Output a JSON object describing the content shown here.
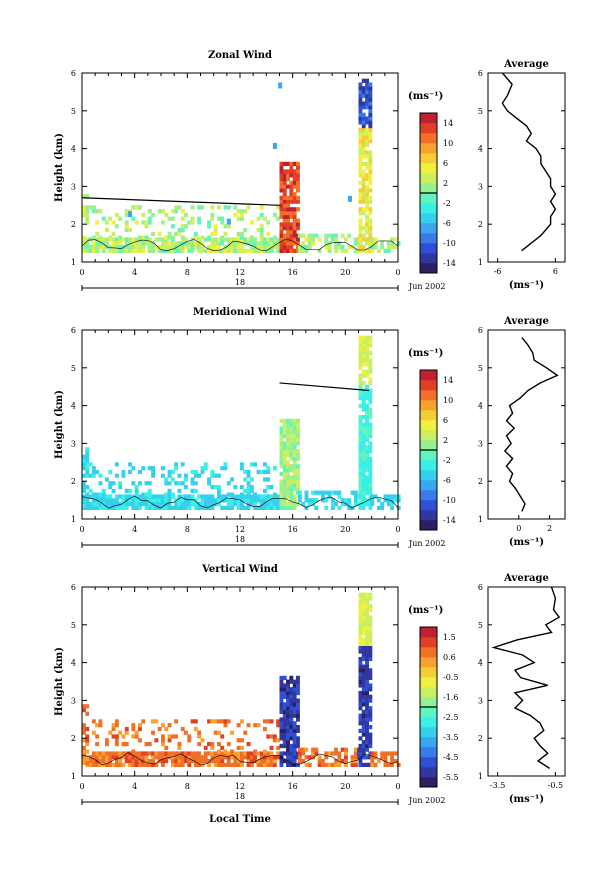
{
  "x_axis_label": "Local Time",
  "date_label": "Jun 2002",
  "day_label": "18",
  "x_ticks": [
    "0",
    "4",
    "8",
    "12",
    "16",
    "20",
    "0"
  ],
  "y_axis_label": "Height (km)",
  "unit_label": "(ms⁻¹)",
  "panels": [
    {
      "title": "Zonal Wind",
      "average_title": "Average",
      "y_ticks": [
        "1",
        "2",
        "3",
        "4",
        "5",
        "6"
      ],
      "colorbar_ticks": [
        "14",
        "10",
        "6",
        "2",
        "-2",
        "-6",
        "-10",
        "-14"
      ],
      "average_ticks": [
        "-6",
        "6"
      ],
      "scale": "zonal"
    },
    {
      "title": "Meridional Wind",
      "average_title": "Average",
      "y_ticks": [
        "1",
        "2",
        "3",
        "4",
        "5",
        "6"
      ],
      "colorbar_ticks": [
        "14",
        "10",
        "6",
        "2",
        "-2",
        "-6",
        "-10",
        "-14"
      ],
      "average_ticks": [
        "0",
        "2"
      ],
      "scale": "merid"
    },
    {
      "title": "Vertical Wind",
      "average_title": "Average",
      "y_ticks": [
        "1",
        "2",
        "3",
        "4",
        "5",
        "6"
      ],
      "colorbar_ticks": [
        "1.5",
        "0.6",
        "-0.5",
        "-1.6",
        "-2.5",
        "-3.5",
        "-4.5",
        "-5.5"
      ],
      "average_ticks": [
        "-3.5",
        "-0.5"
      ],
      "scale": "vert"
    }
  ],
  "chart_data": [
    {
      "type": "heatmap",
      "title": "Zonal Wind",
      "xlabel": "Local Time",
      "ylabel": "Height (km)",
      "x_range_hours": [
        0,
        24
      ],
      "ylim": [
        1,
        6
      ],
      "colorbar": {
        "label": "(ms⁻¹)",
        "range": [
          -16,
          16
        ],
        "ticks": [
          14,
          10,
          6,
          2,
          -2,
          -6,
          -10,
          -14
        ]
      },
      "boundary_layer_top": [
        {
          "x": 0,
          "y": 2.7
        },
        {
          "x": 15,
          "y": 2.5
        }
      ],
      "average_profile": {
        "title": "Average",
        "xlim": [
          -8,
          8
        ],
        "xticks": [
          -6,
          6
        ],
        "xlabel": "(ms⁻¹)",
        "points": [
          [
            -5,
            6.0
          ],
          [
            -3,
            5.7
          ],
          [
            -4,
            5.4
          ],
          [
            -5,
            5.2
          ],
          [
            -4,
            5.0
          ],
          [
            -2,
            4.8
          ],
          [
            0,
            4.6
          ],
          [
            1,
            4.4
          ],
          [
            0,
            4.2
          ],
          [
            2,
            4.0
          ],
          [
            3,
            3.8
          ],
          [
            3,
            3.6
          ],
          [
            4,
            3.4
          ],
          [
            5,
            3.2
          ],
          [
            5,
            3.0
          ],
          [
            6,
            2.8
          ],
          [
            5,
            2.6
          ],
          [
            6,
            2.4
          ],
          [
            5,
            2.2
          ],
          [
            5,
            2.0
          ],
          [
            3,
            1.7
          ],
          [
            1,
            1.5
          ],
          [
            -1,
            1.3
          ]
        ]
      }
    },
    {
      "type": "heatmap",
      "title": "Meridional Wind",
      "xlabel": "Local Time",
      "ylabel": "Height (km)",
      "x_range_hours": [
        0,
        24
      ],
      "ylim": [
        1,
        6
      ],
      "colorbar": {
        "label": "(ms⁻¹)",
        "range": [
          -16,
          16
        ],
        "ticks": [
          14,
          10,
          6,
          2,
          -2,
          -6,
          -10,
          -14
        ]
      },
      "boundary_layer_top": [
        {
          "x": 15,
          "y": 4.6
        },
        {
          "x": 21.8,
          "y": 4.4
        }
      ],
      "average_profile": {
        "title": "Average",
        "xlim": [
          -2,
          3
        ],
        "xticks": [
          0,
          2
        ],
        "xlabel": "(ms⁻¹)",
        "points": [
          [
            0.2,
            5.8
          ],
          [
            0.6,
            5.6
          ],
          [
            0.9,
            5.4
          ],
          [
            1.0,
            5.2
          ],
          [
            1.8,
            5.0
          ],
          [
            2.5,
            4.8
          ],
          [
            1.4,
            4.6
          ],
          [
            0.6,
            4.4
          ],
          [
            0.1,
            4.2
          ],
          [
            -0.6,
            4.0
          ],
          [
            -0.4,
            3.8
          ],
          [
            -0.8,
            3.6
          ],
          [
            -0.3,
            3.4
          ],
          [
            -0.8,
            3.2
          ],
          [
            -0.5,
            3.0
          ],
          [
            -0.9,
            2.8
          ],
          [
            -0.4,
            2.6
          ],
          [
            -0.8,
            2.4
          ],
          [
            -0.4,
            2.2
          ],
          [
            -0.6,
            2.0
          ],
          [
            -0.2,
            1.8
          ],
          [
            0.1,
            1.6
          ],
          [
            0.4,
            1.4
          ],
          [
            0.2,
            1.2
          ]
        ]
      }
    },
    {
      "type": "heatmap",
      "title": "Vertical Wind",
      "xlabel": "Local Time",
      "ylabel": "Height (km)",
      "x_range_hours": [
        0,
        24
      ],
      "ylim": [
        1,
        6
      ],
      "colorbar": {
        "label": "(ms⁻¹)",
        "range": [
          -6,
          2
        ],
        "ticks": [
          1.5,
          0.6,
          -0.5,
          -1.6,
          -2.5,
          -3.5,
          -4.5,
          -5.5
        ]
      },
      "average_profile": {
        "title": "Average",
        "xlim": [
          -4,
          0
        ],
        "xticks": [
          -3.5,
          -0.5
        ],
        "xlabel": "(ms⁻¹)",
        "points": [
          [
            -0.7,
            6.0
          ],
          [
            -0.5,
            5.7
          ],
          [
            -0.6,
            5.4
          ],
          [
            -0.3,
            5.2
          ],
          [
            -1.0,
            5.0
          ],
          [
            -0.7,
            4.8
          ],
          [
            -2.5,
            4.6
          ],
          [
            -3.7,
            4.4
          ],
          [
            -2.2,
            4.2
          ],
          [
            -1.6,
            4.0
          ],
          [
            -2.6,
            3.8
          ],
          [
            -2.3,
            3.6
          ],
          [
            -0.9,
            3.4
          ],
          [
            -2.6,
            3.2
          ],
          [
            -2.2,
            3.0
          ],
          [
            -2.6,
            2.8
          ],
          [
            -1.8,
            2.6
          ],
          [
            -1.3,
            2.4
          ],
          [
            -1.1,
            2.2
          ],
          [
            -1.6,
            2.0
          ],
          [
            -1.3,
            1.8
          ],
          [
            -0.9,
            1.6
          ],
          [
            -1.4,
            1.4
          ],
          [
            -0.8,
            1.2
          ]
        ]
      }
    }
  ]
}
